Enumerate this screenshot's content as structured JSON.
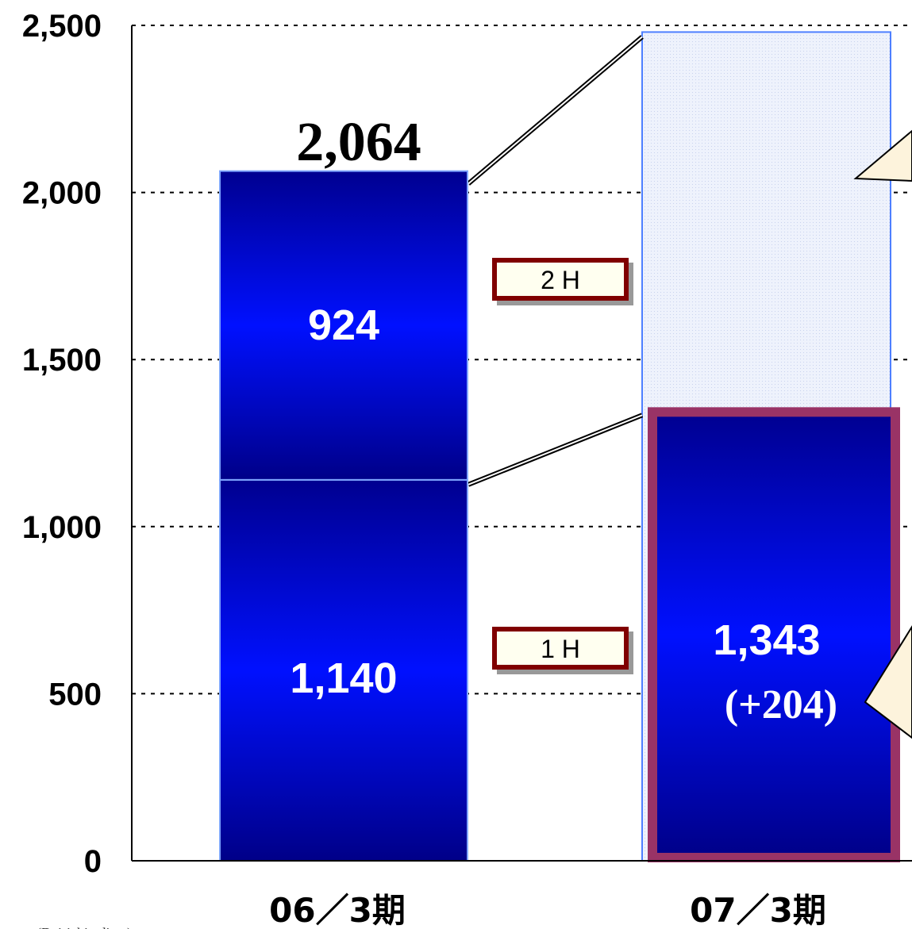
{
  "chart_data": {
    "type": "bar",
    "stacked": true,
    "categories": [
      "06／3期",
      "07／3期"
    ],
    "series": [
      {
        "name": "1 H",
        "values": [
          1140,
          1343
        ]
      },
      {
        "name": "2 H",
        "values": [
          924,
          null
        ]
      }
    ],
    "segment_labels": {
      "first_half": [
        "1,140",
        "1,343"
      ],
      "second_half": [
        "924",
        ""
      ]
    },
    "totals": [
      "2,064",
      ""
    ],
    "delta_label": "(+204)",
    "projected_total": 2480,
    "yticks": [
      "0",
      "500",
      "1,000",
      "1,500",
      "2,000",
      "2,500"
    ],
    "ylim": [
      0,
      2500
    ],
    "grid": true,
    "legend_tags": [
      "2 H",
      "1 H"
    ],
    "footnote": "(Dai-ichi...dia...)",
    "colors": {
      "bar": "#0000ee",
      "bar_dark": "#000080",
      "outline": "#993366",
      "projection": "#e6ecfa",
      "tag_border": "#800000",
      "tag_fill": "#fffff0",
      "callout": "#fdf3dc"
    }
  }
}
